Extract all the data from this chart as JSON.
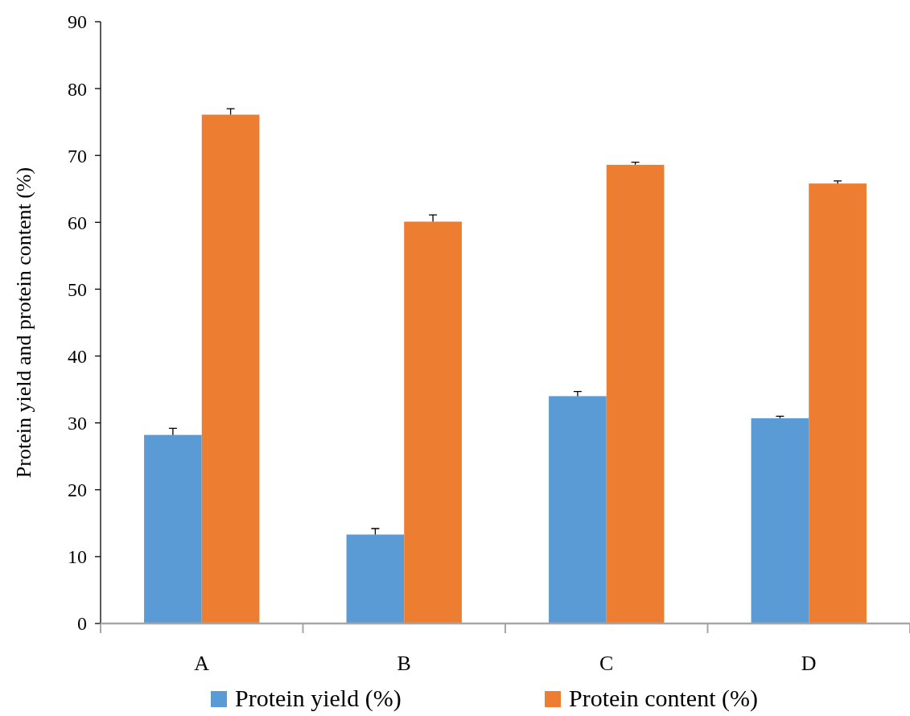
{
  "chart_data": {
    "type": "bar",
    "ylabel": "Protein yield and protein content (%)",
    "categories": [
      "A",
      "B",
      "C",
      "D"
    ],
    "series": [
      {
        "name": "Protein yield (%)",
        "color": "#5b9bd5",
        "values": [
          28.2,
          13.3,
          34.0,
          30.7
        ],
        "errors": [
          [
            28.2,
            29.2
          ],
          [
            13.3,
            14.2
          ],
          [
            34.0,
            34.7
          ],
          [
            30.7,
            31.0
          ]
        ]
      },
      {
        "name": "Protein content (%)",
        "color": "#ed7d31",
        "values": [
          76.1,
          60.1,
          68.6,
          65.8
        ],
        "errors": [
          [
            76.1,
            77.0
          ],
          [
            60.1,
            61.1
          ],
          [
            68.6,
            69.0
          ],
          [
            65.8,
            66.2
          ]
        ]
      }
    ],
    "ylim": [
      0,
      90
    ],
    "yticks": [
      0,
      10,
      20,
      30,
      40,
      50,
      60,
      70,
      80,
      90
    ],
    "grid": false,
    "legend": "bottom"
  }
}
